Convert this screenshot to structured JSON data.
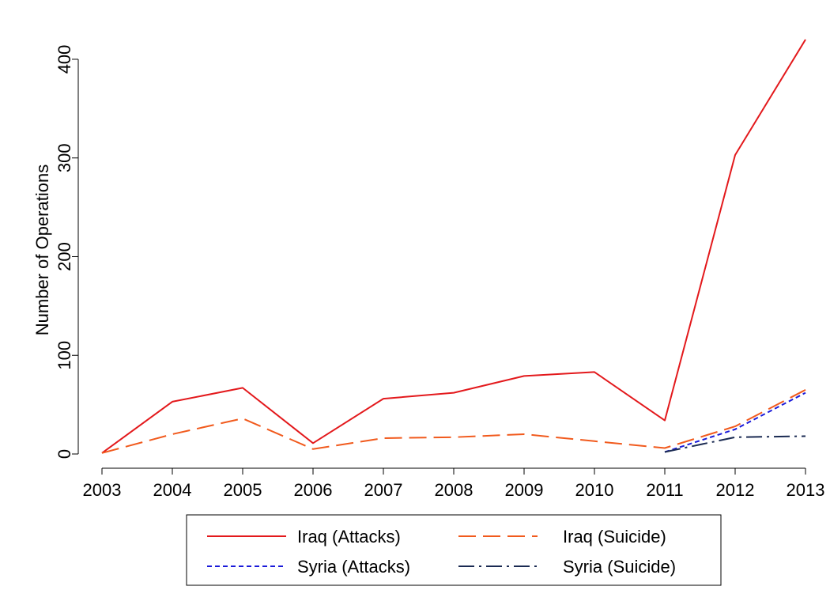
{
  "chart_data": {
    "type": "line",
    "title": "",
    "xlabel": "",
    "ylabel": "Number of Operations",
    "x": [
      2003,
      2004,
      2005,
      2006,
      2007,
      2008,
      2009,
      2010,
      2011,
      2012,
      2013
    ],
    "xlim": [
      2003,
      2013
    ],
    "ylim": [
      0,
      420
    ],
    "yticks": [
      0,
      100,
      200,
      300,
      400
    ],
    "grid": false,
    "legend_position": "bottom",
    "series": [
      {
        "name": "Iraq (Attacks)",
        "color": "#e3191c",
        "dash": "solid",
        "x": [
          2003,
          2004,
          2005,
          2006,
          2007,
          2008,
          2009,
          2010,
          2011,
          2012,
          2013
        ],
        "values": [
          1,
          53,
          67,
          11,
          56,
          62,
          79,
          83,
          34,
          303,
          420
        ]
      },
      {
        "name": "Iraq (Suicide)",
        "color": "#f15a1d",
        "dash": "long-dash",
        "x": [
          2003,
          2004,
          2005,
          2006,
          2007,
          2008,
          2009,
          2010,
          2011,
          2012,
          2013
        ],
        "values": [
          1,
          20,
          36,
          5,
          16,
          17,
          20,
          13,
          6,
          28,
          65
        ]
      },
      {
        "name": "Syria (Attacks)",
        "color": "#1a1ad9",
        "dash": "short-dash",
        "x": [
          2011,
          2012,
          2013
        ],
        "values": [
          2,
          25,
          62
        ]
      },
      {
        "name": "Syria (Suicide)",
        "color": "#1a2a52",
        "dash": "dash-dot",
        "x": [
          2011,
          2012,
          2013
        ],
        "values": [
          2,
          17,
          18
        ]
      }
    ]
  }
}
